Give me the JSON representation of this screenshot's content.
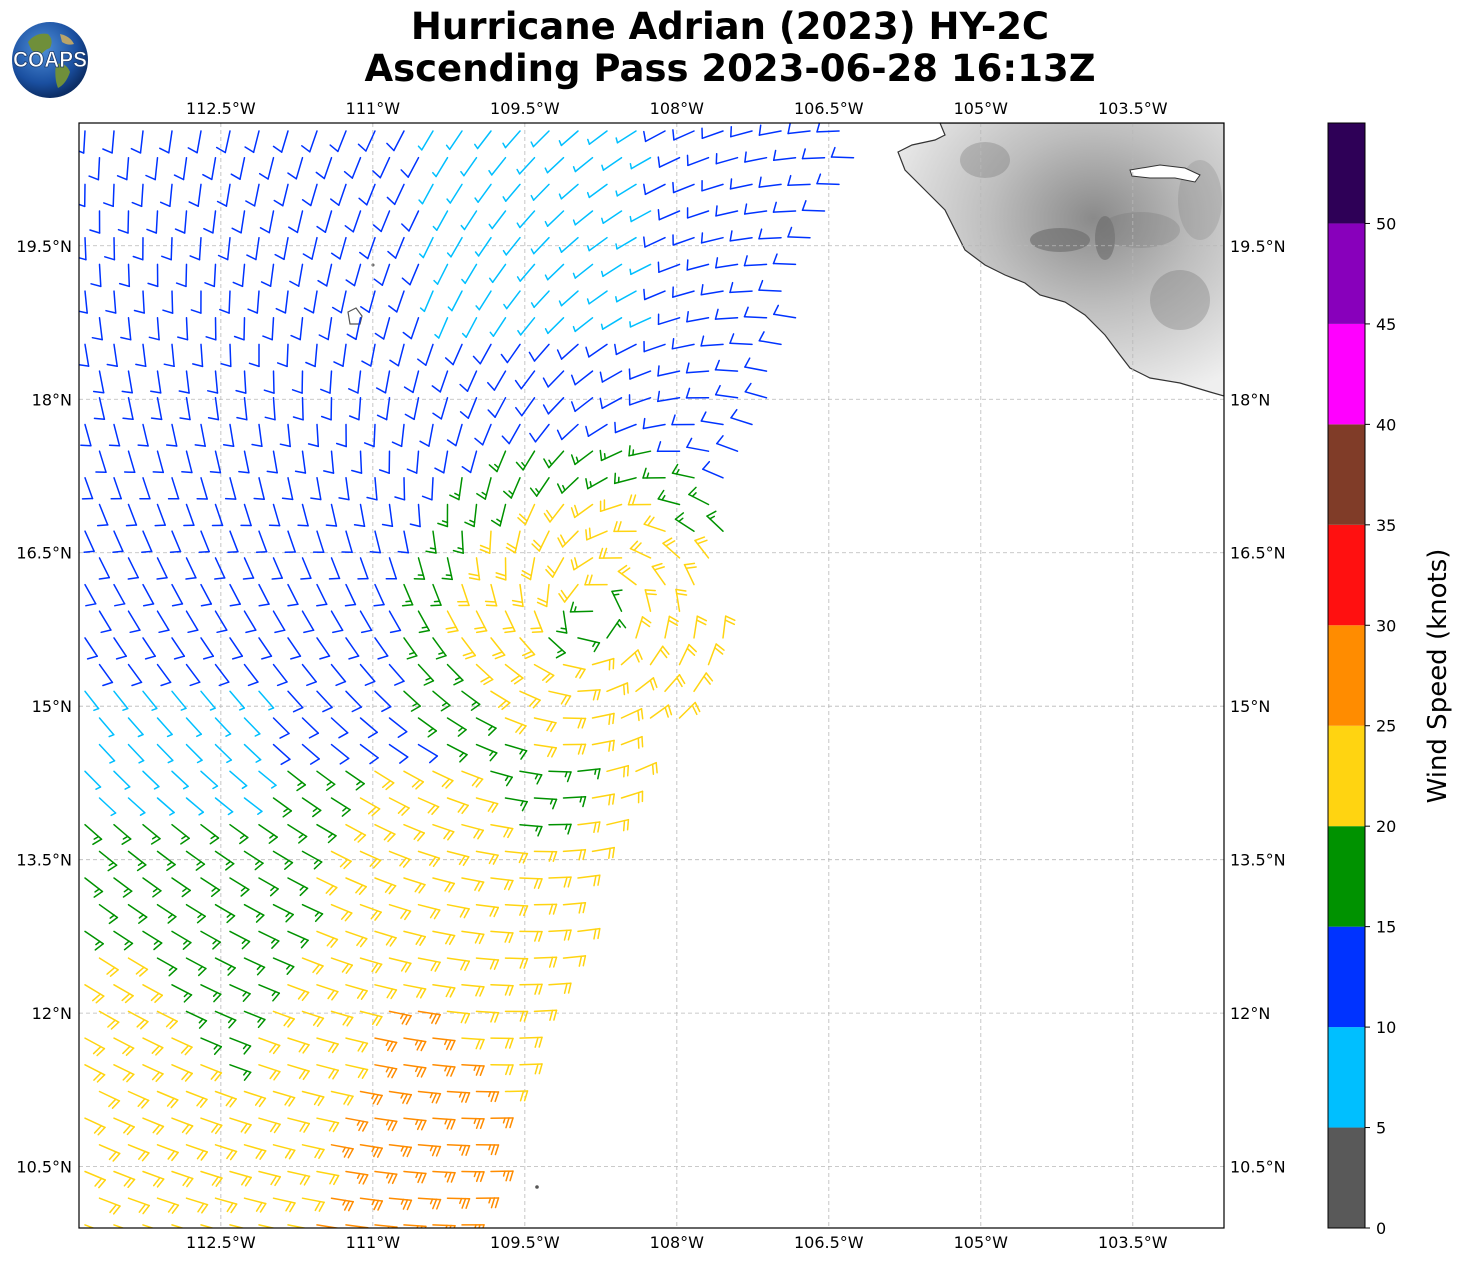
{
  "title": {
    "line1": "Hurricane Adrian (2023) HY-2C",
    "line2": "Ascending Pass 2023-06-28 16:13Z"
  },
  "logo": {
    "text": "COAPS",
    "icon": "globe-logo-icon"
  },
  "map": {
    "lon_range": [
      -113.9,
      -102.6
    ],
    "lat_range": [
      9.9,
      20.7
    ],
    "lon_ticks": [
      {
        "value": -112.5,
        "label": "112.5°W"
      },
      {
        "value": -111.0,
        "label": "111°W"
      },
      {
        "value": -109.5,
        "label": "109.5°W"
      },
      {
        "value": -108.0,
        "label": "108°W"
      },
      {
        "value": -106.5,
        "label": "106.5°W"
      },
      {
        "value": -105.0,
        "label": "105°W"
      },
      {
        "value": -103.5,
        "label": "103.5°W"
      }
    ],
    "lat_ticks": [
      {
        "value": 19.5,
        "label": "19.5°N"
      },
      {
        "value": 18.0,
        "label": "18°N"
      },
      {
        "value": 16.5,
        "label": "16.5°N"
      },
      {
        "value": 15.0,
        "label": "15°N"
      },
      {
        "value": 13.5,
        "label": "13.5°N"
      },
      {
        "value": 12.0,
        "label": "12°N"
      },
      {
        "value": 10.5,
        "label": "10.5°N"
      }
    ],
    "grid": true,
    "storm_center": {
      "lon": -108.9,
      "lat": 15.8
    },
    "swath": {
      "east_edge_lon_north": -106.1,
      "east_edge_lon_south": -110.0,
      "west_edge_lon": -113.9
    }
  },
  "colorbar": {
    "label": "Wind Speed (knots)",
    "ticks": [
      "0",
      "5",
      "10",
      "15",
      "20",
      "25",
      "30",
      "35",
      "40",
      "45",
      "50"
    ],
    "bins": [
      {
        "min": 0,
        "max": 5,
        "color": "#595959"
      },
      {
        "min": 5,
        "max": 10,
        "color": "#00bfff"
      },
      {
        "min": 10,
        "max": 15,
        "color": "#0033ff"
      },
      {
        "min": 15,
        "max": 20,
        "color": "#009200"
      },
      {
        "min": 20,
        "max": 25,
        "color": "#ffd411"
      },
      {
        "min": 25,
        "max": 30,
        "color": "#ff8c00"
      },
      {
        "min": 30,
        "max": 35,
        "color": "#ff1010"
      },
      {
        "min": 35,
        "max": 40,
        "color": "#803c28"
      },
      {
        "min": 40,
        "max": 45,
        "color": "#ff00ff"
      },
      {
        "min": 45,
        "max": 50,
        "color": "#8800bb"
      },
      {
        "min": 50,
        "max": 55,
        "color": "#2e0057"
      }
    ]
  }
}
